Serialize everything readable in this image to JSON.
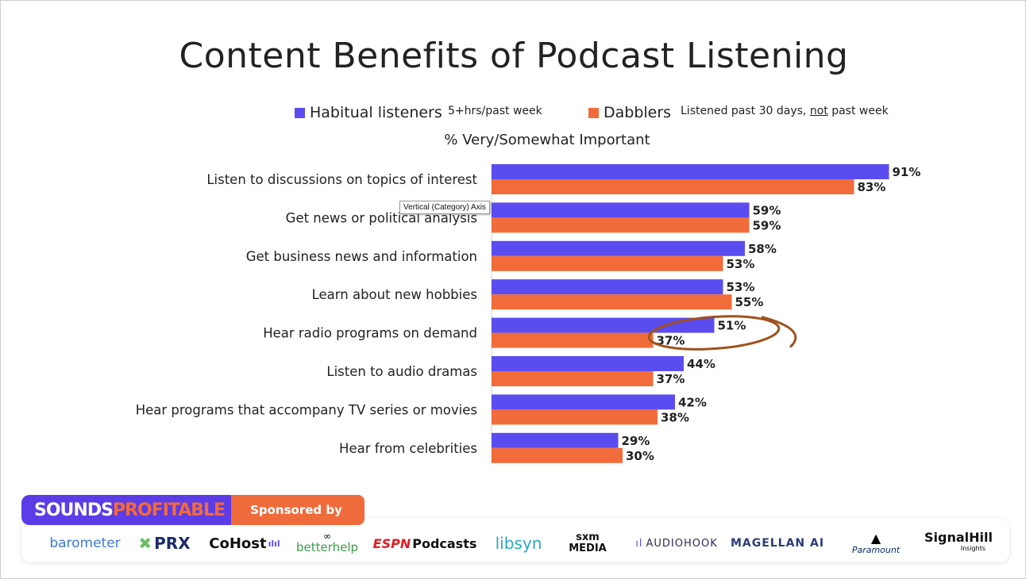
{
  "title": "Content Benefits of Podcast Listening",
  "legend": [
    {
      "name": "Habitual listeners",
      "note": "5+hrs/past week",
      "color": "#5b4cf0"
    },
    {
      "name": "Dabblers",
      "note_before": "Listened past 30 days, ",
      "note_underlined": "not",
      "note_after": " past week",
      "color": "#f26b3a"
    }
  ],
  "subtitle": "% Very/Somewhat Important",
  "tooltip": "Vertical (Category) Axis",
  "chart_data": {
    "type": "bar",
    "orientation": "horizontal",
    "categories": [
      "Listen to discussions on topics of interest",
      "Get news or political analysis",
      "Get business news and information",
      "Learn about new hobbies",
      "Hear radio programs on demand",
      "Listen to audio dramas",
      "Hear programs that accompany TV series or movies",
      "Hear from celebrities"
    ],
    "series": [
      {
        "name": "Habitual listeners",
        "values": [
          91,
          59,
          58,
          53,
          51,
          44,
          42,
          29
        ],
        "color": "#5b4cf0"
      },
      {
        "name": "Dabblers",
        "values": [
          83,
          59,
          53,
          55,
          37,
          37,
          38,
          30
        ],
        "color": "#f26b3a"
      }
    ],
    "value_suffix": "%",
    "xlim": [
      0,
      100
    ],
    "highlight_category": "Hear radio programs on demand"
  },
  "sponsor": {
    "brand_left": "SOUNDS",
    "brand_right": "PROFITABLE",
    "tagline": "Sponsored by"
  },
  "sponsors": [
    {
      "name": "barometer",
      "color": "#3a7bd5"
    },
    {
      "name": "PRX",
      "color": "#1c2a6b"
    },
    {
      "name": "CoHost",
      "color": "#111111"
    },
    {
      "name": "betterhelp",
      "color": "#3d9b4c"
    },
    {
      "name": "Podcasts",
      "prefix": "ESPN",
      "color": "#111111"
    },
    {
      "name": "libsyn",
      "color": "#2aa6c9"
    },
    {
      "name": "sxm MEDIA",
      "color": "#111111"
    },
    {
      "name": "AUDIOHOOK",
      "color": "#2b2b5e"
    },
    {
      "name": "MAGELLAN AI",
      "color": "#2b3b7a"
    },
    {
      "name": "Paramount",
      "color": "#0b2a6b"
    },
    {
      "name": "SignalHill",
      "sub": "Insights",
      "color": "#111111"
    }
  ]
}
